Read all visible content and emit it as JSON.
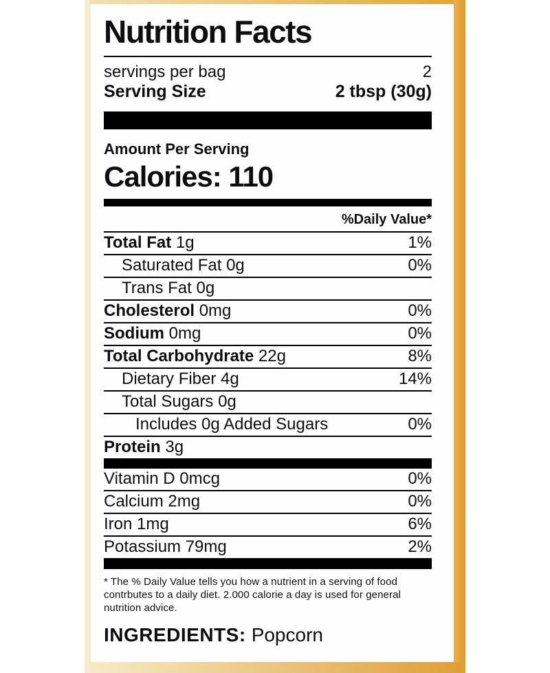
{
  "nutrition": {
    "title": "Nutrition Facts",
    "servings": {
      "label": "servings per bag",
      "value": "2"
    },
    "serving_size": {
      "label": "Serving Size",
      "value": "2 tbsp (30g)"
    },
    "amount_per_serving": "Amount Per Serving",
    "calories_line": "Calories: 110",
    "daily_value_header": "%Daily Value*",
    "nutrients": [
      {
        "bold": "Total Fat",
        "rest": " 1g",
        "pct": "1%",
        "indent": 0
      },
      {
        "bold": "",
        "rest": "Saturated Fat 0g",
        "pct": "0%",
        "indent": 1
      },
      {
        "bold": "",
        "rest": "Trans Fat 0g",
        "pct": "",
        "indent": 1
      },
      {
        "bold": "Cholesterol",
        "rest": " 0mg",
        "pct": "0%",
        "indent": 0
      },
      {
        "bold": "Sodium",
        "rest": " 0mg",
        "pct": "0%",
        "indent": 0
      },
      {
        "bold": "Total Carbohydrate",
        "rest": " 22g",
        "pct": "8%",
        "indent": 0
      },
      {
        "bold": "",
        "rest": "Dietary Fiber 4g",
        "pct": "14%",
        "indent": 1
      },
      {
        "bold": "",
        "rest": "Total Sugars 0g",
        "pct": "",
        "indent": 1
      },
      {
        "bold": "",
        "rest": "Includes 0g Added Sugars",
        "pct": "0%",
        "indent": 2
      },
      {
        "bold": "Protein",
        "rest": " 3g",
        "pct": "",
        "indent": 0
      }
    ],
    "micronutrients": [
      {
        "rest": "Vitamin D 0mcg",
        "pct": "0%"
      },
      {
        "rest": "Calcium 2mg",
        "pct": "0%"
      },
      {
        "rest": "Iron 1mg",
        "pct": "6%"
      },
      {
        "rest": "Potassium 79mg",
        "pct": "2%"
      }
    ],
    "footnote": "* The % Daily Value tells you how a nutrient in a serving of food contrbutes to a daily diet. 2.000 calorie a day is used for general nutrition advice.",
    "ingredients": {
      "label": "INGREDIENTS:",
      "value": "Popcorn"
    }
  },
  "colors": {
    "accent_gold": "#e2a437",
    "cream_band": "#f6ecce",
    "text": "#0e0e0e",
    "background": "#ffffff"
  }
}
